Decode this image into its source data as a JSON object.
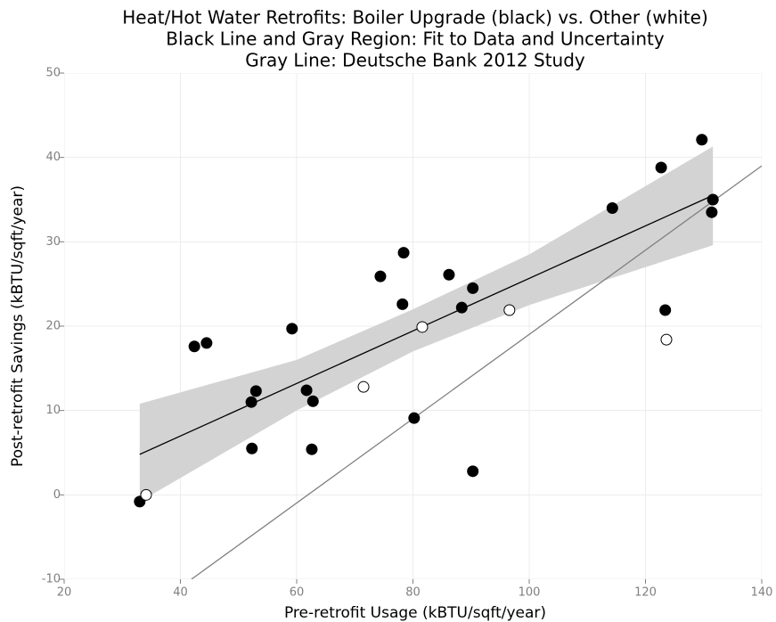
{
  "chart_data": {
    "type": "scatter",
    "title": [
      "Heat/Hot Water Retrofits: Boiler Upgrade (black) vs. Other (white)",
      "Black Line and Gray Region: Fit to Data and Uncertainty",
      "Gray Line: Deutsche Bank 2012 Study"
    ],
    "x_label": "Pre-retrofit Usage (kBTU/sqft/year)",
    "y_label": "Post-retrofit Savings (kBTU/sqft/year)",
    "xlim": [
      20,
      140
    ],
    "xticks": [
      20,
      40,
      60,
      80,
      100,
      120,
      140
    ],
    "ylim": [
      -10,
      50
    ],
    "yticks": [
      -10,
      0,
      10,
      20,
      30,
      40,
      50
    ],
    "grid": true,
    "band": {
      "color": "#d3d3d3",
      "x": [
        33,
        60,
        80,
        100,
        131.6
      ],
      "lower": [
        -0.8,
        10,
        17,
        22.5,
        29.6
      ],
      "upper": [
        10.8,
        16,
        22,
        28.5,
        41.3
      ]
    },
    "lines": [
      {
        "color": "#000000",
        "x": [
          33,
          131.6
        ],
        "values": [
          4.8,
          35.5
        ]
      },
      {
        "color": "#808080",
        "x": [
          41.9,
          140
        ],
        "values": [
          -10,
          39.0
        ]
      }
    ],
    "series": [
      {
        "color": "#000000",
        "x": [
          33.0,
          42.4,
          44.5,
          59.2,
          53.0,
          52.2,
          52.3,
          61.7,
          62.8,
          62.6,
          74.4,
          78.4,
          78.2,
          80.2,
          86.2,
          88.4,
          90.3,
          90.3,
          114.3,
          122.7,
          129.7,
          131.6,
          131.4,
          123.4
        ],
        "values": [
          -0.8,
          17.6,
          18.0,
          19.7,
          12.3,
          11.0,
          5.5,
          12.4,
          11.1,
          5.4,
          25.9,
          28.7,
          22.6,
          9.1,
          26.1,
          22.2,
          24.5,
          2.8,
          34.0,
          38.8,
          42.1,
          35.0,
          33.5,
          21.9
        ]
      },
      {
        "color": "#ffffff",
        "x": [
          34.1,
          71.5,
          81.6,
          96.6,
          123.6
        ],
        "values": [
          0.0,
          12.8,
          19.9,
          21.9,
          18.4
        ]
      }
    ]
  }
}
